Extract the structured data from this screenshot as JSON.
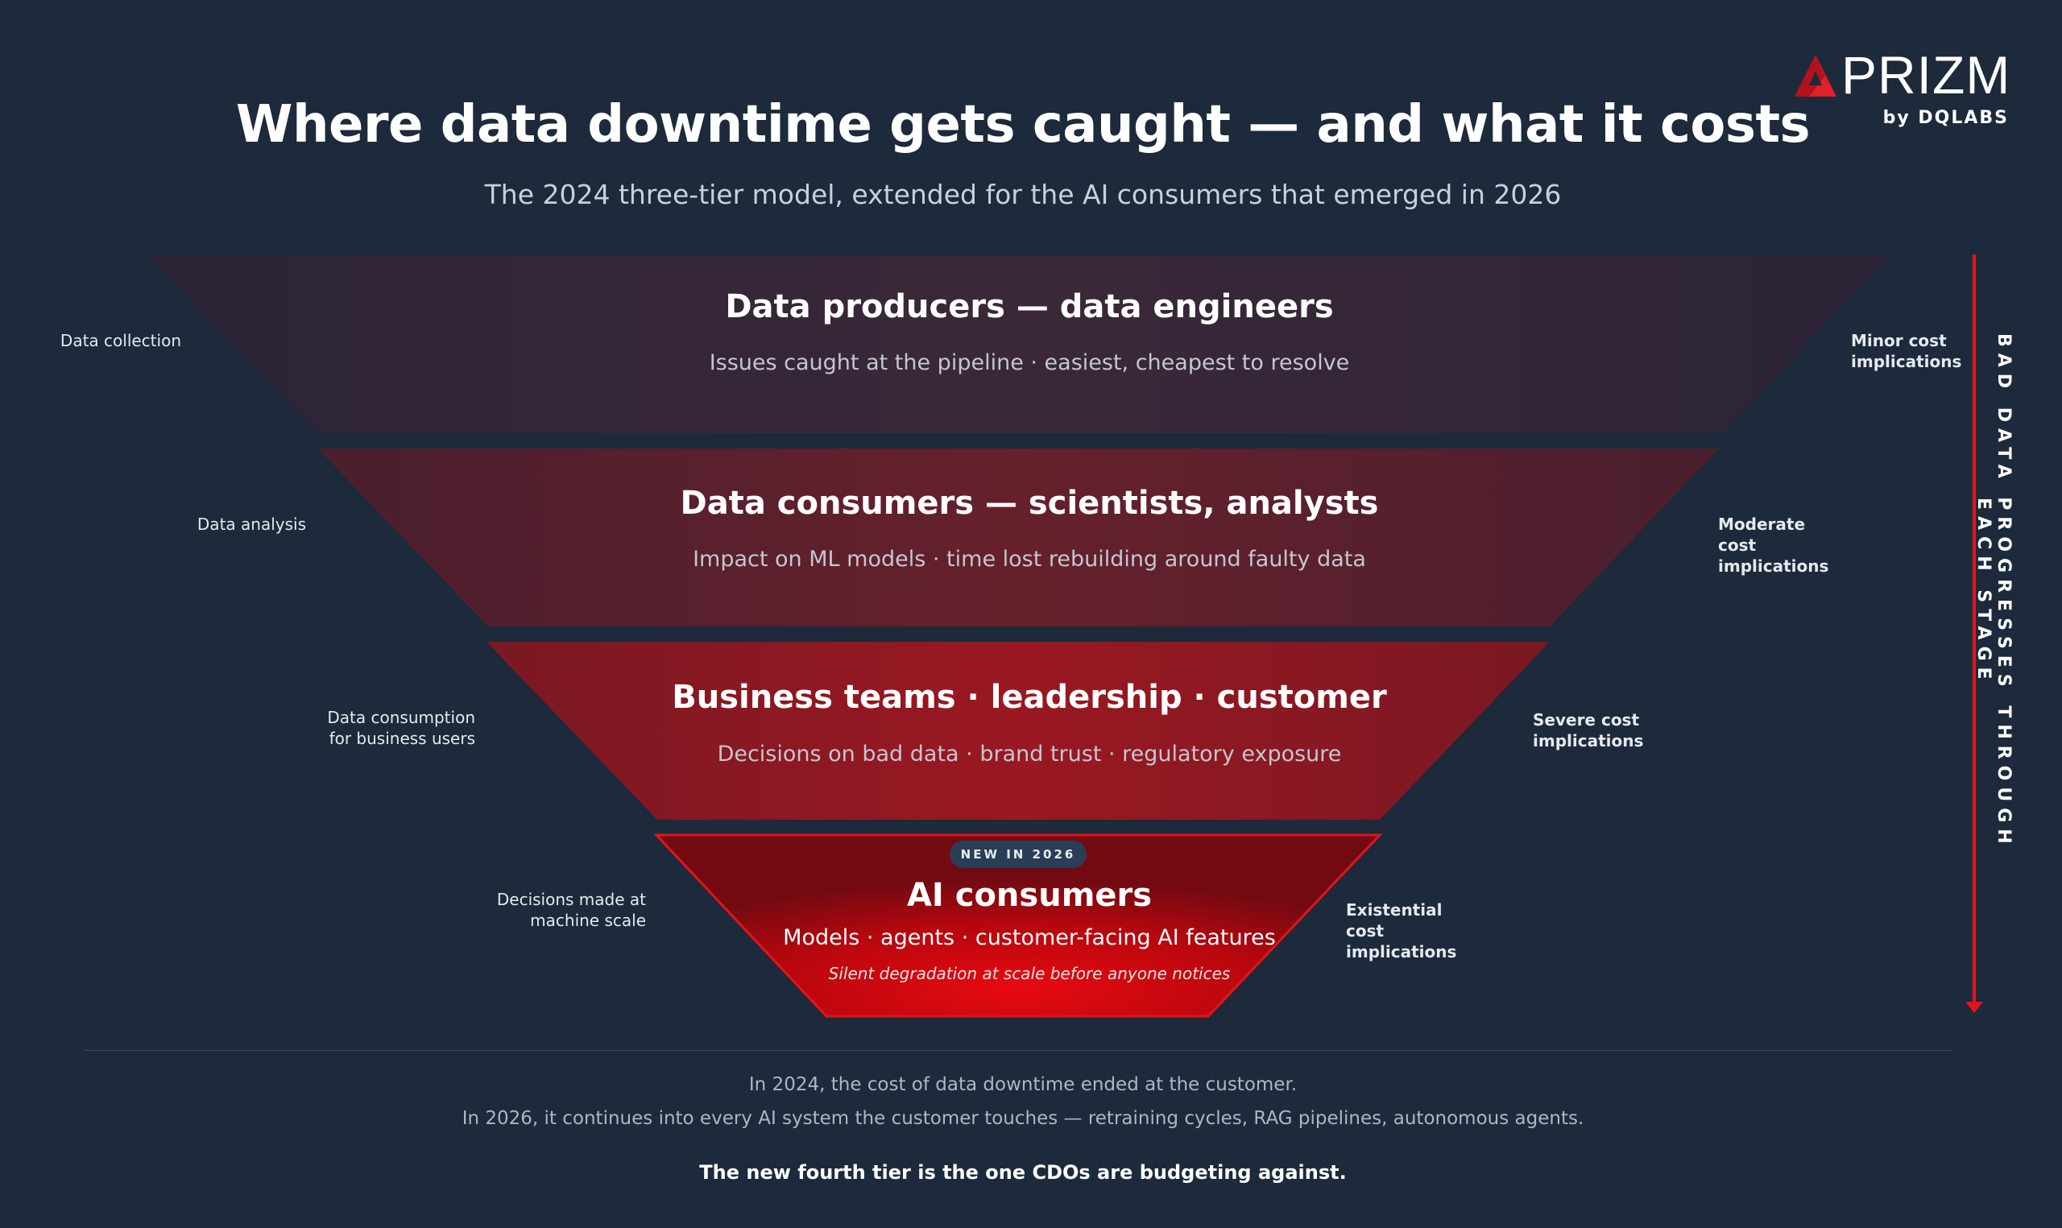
{
  "header": {
    "title": "Where data downtime gets caught — and what it costs",
    "subtitle": "The 2024 three-tier model, extended for the AI consumers that emerged in 2026"
  },
  "logo": {
    "name": "PRIZM",
    "byline": "by DQLABS",
    "icon": "prizm-triangle-icon",
    "color": "#e0202a"
  },
  "tiers": [
    {
      "title": "Data producers — data engineers",
      "description": "Issues caught at the pipeline · easiest, cheapest to resolve",
      "stage_label": "Data collection",
      "cost_label": "Minor cost implications",
      "color": "#33263a"
    },
    {
      "title": "Data consumers — scientists, analysts",
      "description": "Impact on ML models · time lost rebuilding around faulty data",
      "stage_label": "Data analysis",
      "cost_label": "Moderate cost implications",
      "color": "#5a1f2d"
    },
    {
      "title": "Business teams · leadership · customer",
      "description": "Decisions on bad data · brand trust · regulatory exposure",
      "stage_label": "Data consumption for business users",
      "cost_label": "Severe cost implications",
      "color": "#8e1823"
    },
    {
      "title": "AI consumers",
      "description": "Models · agents · customer-facing AI features",
      "note": "Silent degradation at scale before anyone notices",
      "badge": "NEW IN 2026",
      "stage_label": "Decisions made at machine scale",
      "cost_label": "Existential cost implications",
      "color": "#d90a12"
    }
  ],
  "side_axis": {
    "label": "BAD DATA PROGRESSES THROUGH EACH STAGE",
    "arrow_color": "#e0141c",
    "icon": "arrow-down-icon"
  },
  "footer": {
    "line1": "In 2024, the cost of data downtime ended at the customer.",
    "line2": "In 2026, it continues into every AI system the customer touches — retraining cycles, RAG pipelines, autonomous agents.",
    "emphasis": "The new fourth tier is the one CDOs are budgeting against."
  }
}
